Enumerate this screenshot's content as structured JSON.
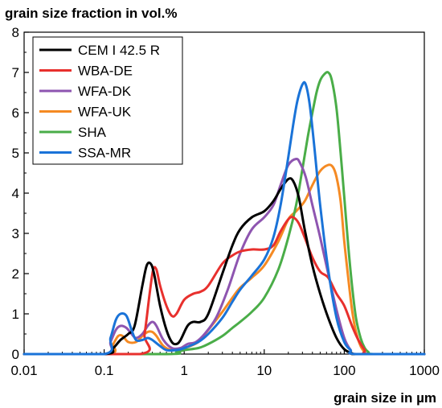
{
  "chart_data": {
    "type": "line",
    "title": "grain size fraction in vol.%",
    "xlabel": "grain size in µm",
    "ylabel": "",
    "x_scale": "log",
    "xlim": [
      0.01,
      1000
    ],
    "ylim": [
      0,
      8
    ],
    "x_ticks": [
      0.01,
      0.1,
      1,
      10,
      100,
      1000
    ],
    "x_tick_labels": [
      "0.01",
      "0.1",
      "1",
      "10",
      "100",
      "1000"
    ],
    "y_ticks": [
      0,
      1,
      2,
      3,
      4,
      5,
      6,
      7,
      8
    ],
    "y_tick_labels": [
      "0",
      "1",
      "2",
      "3",
      "4",
      "5",
      "6",
      "7",
      "8"
    ],
    "legend_position": "top-left",
    "grid": false,
    "series": [
      {
        "name": "CEM I 42.5 R",
        "color": "#000000",
        "points": [
          [
            0.01,
            0
          ],
          [
            0.1,
            0
          ],
          [
            0.13,
            0.15
          ],
          [
            0.16,
            0.35
          ],
          [
            0.2,
            0.5
          ],
          [
            0.24,
            0.7
          ],
          [
            0.3,
            1.7
          ],
          [
            0.34,
            2.2
          ],
          [
            0.38,
            2.25
          ],
          [
            0.42,
            2.0
          ],
          [
            0.5,
            1.2
          ],
          [
            0.6,
            0.6
          ],
          [
            0.7,
            0.3
          ],
          [
            0.8,
            0.25
          ],
          [
            0.9,
            0.35
          ],
          [
            1.1,
            0.7
          ],
          [
            1.3,
            0.8
          ],
          [
            1.6,
            0.8
          ],
          [
            2,
            1.0
          ],
          [
            3,
            2.0
          ],
          [
            4,
            2.7
          ],
          [
            5,
            3.1
          ],
          [
            7,
            3.4
          ],
          [
            10,
            3.55
          ],
          [
            13,
            3.8
          ],
          [
            16,
            4.1
          ],
          [
            20,
            4.35
          ],
          [
            23,
            4.3
          ],
          [
            27,
            3.9
          ],
          [
            32,
            3.1
          ],
          [
            40,
            2.2
          ],
          [
            50,
            1.5
          ],
          [
            63,
            0.9
          ],
          [
            80,
            0.4
          ],
          [
            100,
            0.12
          ],
          [
            125,
            0.02
          ],
          [
            150,
            0
          ],
          [
            1000,
            0
          ]
        ]
      },
      {
        "name": "WBA-DE",
        "color": "#e8302d",
        "points": [
          [
            0.01,
            0
          ],
          [
            0.28,
            0
          ],
          [
            0.32,
            0.5
          ],
          [
            0.37,
            1.5
          ],
          [
            0.41,
            2.1
          ],
          [
            0.45,
            2.1
          ],
          [
            0.5,
            1.7
          ],
          [
            0.6,
            1.2
          ],
          [
            0.7,
            0.95
          ],
          [
            0.8,
            1.0
          ],
          [
            1,
            1.35
          ],
          [
            1.3,
            1.5
          ],
          [
            1.6,
            1.55
          ],
          [
            2,
            1.7
          ],
          [
            3,
            2.25
          ],
          [
            4,
            2.45
          ],
          [
            5,
            2.55
          ],
          [
            7,
            2.6
          ],
          [
            10,
            2.6
          ],
          [
            13,
            2.7
          ],
          [
            16,
            3.05
          ],
          [
            20,
            3.35
          ],
          [
            23,
            3.4
          ],
          [
            27,
            3.25
          ],
          [
            32,
            2.9
          ],
          [
            40,
            2.4
          ],
          [
            50,
            2.05
          ],
          [
            63,
            1.9
          ],
          [
            80,
            1.5
          ],
          [
            100,
            1.2
          ],
          [
            125,
            0.7
          ],
          [
            150,
            0.35
          ],
          [
            180,
            0.1
          ],
          [
            200,
            0
          ],
          [
            1000,
            0
          ]
        ]
      },
      {
        "name": "WFA-DK",
        "color": "#8e55b0",
        "points": [
          [
            0.01,
            0
          ],
          [
            0.1,
            0
          ],
          [
            0.12,
            0.3
          ],
          [
            0.14,
            0.6
          ],
          [
            0.16,
            0.7
          ],
          [
            0.19,
            0.65
          ],
          [
            0.22,
            0.5
          ],
          [
            0.25,
            0.4
          ],
          [
            0.3,
            0.5
          ],
          [
            0.35,
            0.7
          ],
          [
            0.4,
            0.8
          ],
          [
            0.45,
            0.7
          ],
          [
            0.55,
            0.35
          ],
          [
            0.7,
            0.15
          ],
          [
            0.9,
            0.15
          ],
          [
            1.1,
            0.25
          ],
          [
            1.4,
            0.3
          ],
          [
            1.8,
            0.5
          ],
          [
            2.5,
            0.9
          ],
          [
            3.5,
            1.6
          ],
          [
            5,
            2.5
          ],
          [
            7,
            3.1
          ],
          [
            10,
            3.4
          ],
          [
            13,
            3.7
          ],
          [
            16,
            4.2
          ],
          [
            20,
            4.7
          ],
          [
            25,
            4.85
          ],
          [
            28,
            4.75
          ],
          [
            33,
            4.4
          ],
          [
            40,
            3.7
          ],
          [
            50,
            2.9
          ],
          [
            63,
            2.0
          ],
          [
            80,
            1.1
          ],
          [
            100,
            0.4
          ],
          [
            120,
            0.1
          ],
          [
            140,
            0
          ],
          [
            1000,
            0
          ]
        ]
      },
      {
        "name": "WFA-UK",
        "color": "#f58a23",
        "points": [
          [
            0.01,
            0
          ],
          [
            0.11,
            0
          ],
          [
            0.13,
            0.25
          ],
          [
            0.15,
            0.45
          ],
          [
            0.17,
            0.45
          ],
          [
            0.2,
            0.3
          ],
          [
            0.25,
            0.3
          ],
          [
            0.3,
            0.45
          ],
          [
            0.35,
            0.55
          ],
          [
            0.4,
            0.55
          ],
          [
            0.45,
            0.45
          ],
          [
            0.55,
            0.2
          ],
          [
            0.7,
            0.1
          ],
          [
            1,
            0.15
          ],
          [
            1.5,
            0.3
          ],
          [
            2,
            0.6
          ],
          [
            3,
            1.05
          ],
          [
            4,
            1.4
          ],
          [
            5,
            1.65
          ],
          [
            7,
            1.9
          ],
          [
            10,
            2.2
          ],
          [
            15,
            2.8
          ],
          [
            20,
            3.35
          ],
          [
            25,
            3.55
          ],
          [
            32,
            3.8
          ],
          [
            40,
            4.2
          ],
          [
            50,
            4.55
          ],
          [
            63,
            4.7
          ],
          [
            72,
            4.65
          ],
          [
            80,
            4.4
          ],
          [
            90,
            3.8
          ],
          [
            100,
            2.8
          ],
          [
            112,
            1.9
          ],
          [
            125,
            1.1
          ],
          [
            140,
            0.55
          ],
          [
            160,
            0.2
          ],
          [
            180,
            0.05
          ],
          [
            200,
            0
          ],
          [
            1000,
            0
          ]
        ]
      },
      {
        "name": "SHA",
        "color": "#4aad48",
        "points": [
          [
            0.01,
            0
          ],
          [
            0.6,
            0
          ],
          [
            0.8,
            0.05
          ],
          [
            1,
            0.1
          ],
          [
            1.5,
            0.15
          ],
          [
            2,
            0.25
          ],
          [
            3,
            0.45
          ],
          [
            4,
            0.65
          ],
          [
            5,
            0.8
          ],
          [
            7,
            1.05
          ],
          [
            10,
            1.4
          ],
          [
            15,
            2.1
          ],
          [
            20,
            2.9
          ],
          [
            25,
            3.7
          ],
          [
            30,
            4.6
          ],
          [
            35,
            5.4
          ],
          [
            40,
            6.0
          ],
          [
            45,
            6.5
          ],
          [
            50,
            6.8
          ],
          [
            56,
            6.95
          ],
          [
            63,
            7.0
          ],
          [
            70,
            6.8
          ],
          [
            80,
            6.1
          ],
          [
            90,
            5.0
          ],
          [
            100,
            3.9
          ],
          [
            112,
            2.7
          ],
          [
            125,
            1.7
          ],
          [
            140,
            0.9
          ],
          [
            160,
            0.4
          ],
          [
            180,
            0.15
          ],
          [
            200,
            0.05
          ],
          [
            230,
            0
          ],
          [
            1000,
            0
          ]
        ]
      },
      {
        "name": "SSA-MR",
        "color": "#1a73d8",
        "points": [
          [
            0.01,
            0
          ],
          [
            0.1,
            0
          ],
          [
            0.12,
            0.4
          ],
          [
            0.14,
            0.85
          ],
          [
            0.16,
            1.0
          ],
          [
            0.19,
            0.95
          ],
          [
            0.22,
            0.6
          ],
          [
            0.25,
            0.35
          ],
          [
            0.3,
            0.35
          ],
          [
            0.35,
            0.4
          ],
          [
            0.4,
            0.35
          ],
          [
            0.5,
            0.2
          ],
          [
            0.6,
            0.1
          ],
          [
            0.8,
            0.1
          ],
          [
            1,
            0.15
          ],
          [
            1.5,
            0.3
          ],
          [
            2,
            0.5
          ],
          [
            3,
            0.9
          ],
          [
            4,
            1.3
          ],
          [
            5,
            1.6
          ],
          [
            7,
            1.95
          ],
          [
            10,
            2.35
          ],
          [
            13,
            2.9
          ],
          [
            16,
            3.7
          ],
          [
            20,
            4.9
          ],
          [
            23,
            5.7
          ],
          [
            26,
            6.3
          ],
          [
            30,
            6.7
          ],
          [
            33,
            6.7
          ],
          [
            37,
            6.2
          ],
          [
            42,
            5.2
          ],
          [
            50,
            3.7
          ],
          [
            63,
            2.1
          ],
          [
            80,
            0.9
          ],
          [
            100,
            0.3
          ],
          [
            120,
            0.1
          ],
          [
            140,
            0
          ],
          [
            1000,
            0
          ]
        ]
      }
    ]
  }
}
